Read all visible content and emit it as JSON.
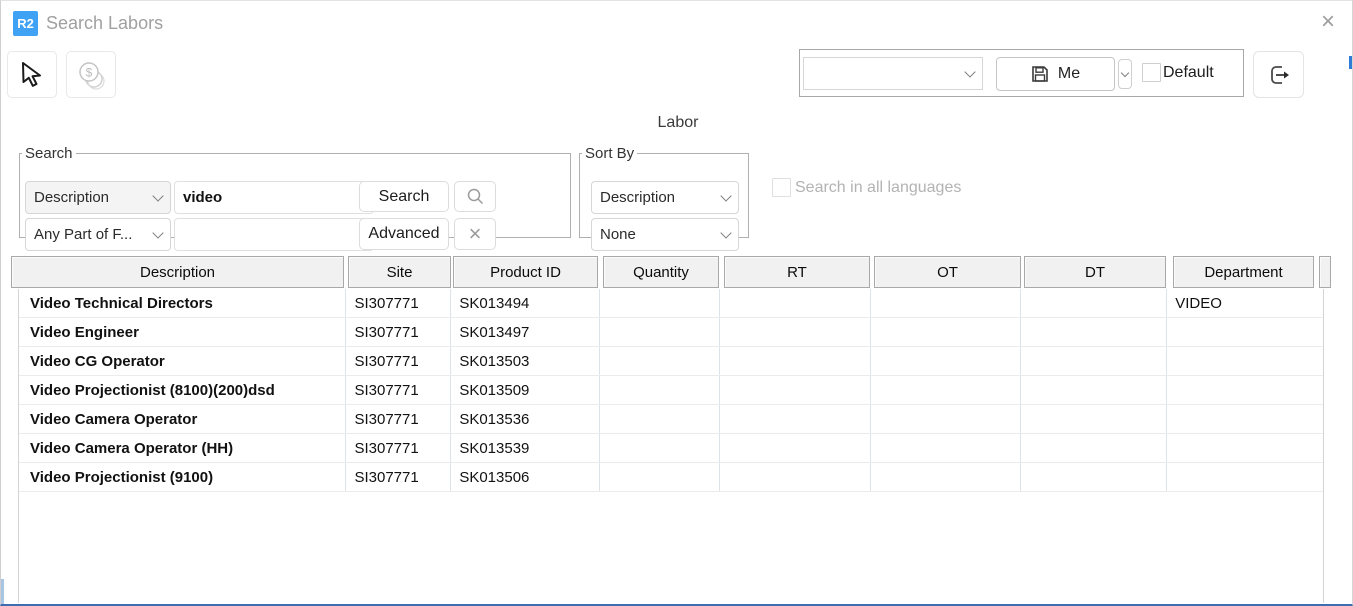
{
  "titlebar": {
    "logo_text": "R2",
    "title": "Search Labors",
    "close_icon": "×"
  },
  "toolbar": {
    "pointer_button_icon": "pointer-cursor",
    "rates_button_icon": "dollar-coins"
  },
  "saved_views": {
    "view_dropdown_value": "",
    "save_button_label": "Me",
    "save_button_icon": "floppy-disk",
    "dropdown_icon": "chevron-down",
    "default_checkbox_label": "Default",
    "default_checkbox_checked": false,
    "exit_button_icon": "exit-arrow"
  },
  "section_label": "Labor",
  "search_group": {
    "legend": "Search",
    "field_dropdown_value": "Description",
    "search_input_value": "video",
    "match_dropdown_value": "Any Part of F...",
    "secondary_input_value": "",
    "search_button_label": "Search",
    "advanced_button_label": "Advanced",
    "find_icon": "magnifier",
    "clear_icon": "x-mark",
    "clear_icon_glyph": "×"
  },
  "sort_group": {
    "legend": "Sort By",
    "primary_dropdown_value": "Description",
    "secondary_dropdown_value": "None"
  },
  "options": {
    "all_languages_checkbox_label": "Search in all languages",
    "all_languages_checked": false
  },
  "table": {
    "columns": [
      "Description",
      "Site",
      "Product ID",
      "Quantity",
      "RT",
      "OT",
      "DT",
      "Department"
    ],
    "rows": [
      [
        "Video Technical Directors",
        "SI307771",
        "SK013494",
        "",
        "",
        "",
        "",
        "VIDEO"
      ],
      [
        "Video Engineer",
        "SI307771",
        "SK013497",
        "",
        "",
        "",
        "",
        ""
      ],
      [
        "Video CG Operator",
        "SI307771",
        "SK013503",
        "",
        "",
        "",
        "",
        ""
      ],
      [
        "Video Projectionist (8100)(200)dsd",
        "SI307771",
        "SK013509",
        "",
        "",
        "",
        "",
        ""
      ],
      [
        "Video Camera Operator",
        "SI307771",
        "SK013536",
        "",
        "",
        "",
        "",
        ""
      ],
      [
        "Video Camera Operator (HH)",
        "SI307771",
        "SK013539",
        "",
        "",
        "",
        "",
        ""
      ],
      [
        "Video Projectionist (9100)",
        "SI307771",
        "SK013506",
        "",
        "",
        "",
        "",
        ""
      ]
    ]
  },
  "colors": {
    "logo_blue": "#3FA2F5",
    "bottom_border_blue": "#3E6CB0",
    "edge_strip_blue": "#2E7CD6",
    "title_text_gray": "#A0A0A0",
    "disabled_text_gray": "#B3B3B3",
    "header_cell_bg": "#F1F1F1"
  }
}
